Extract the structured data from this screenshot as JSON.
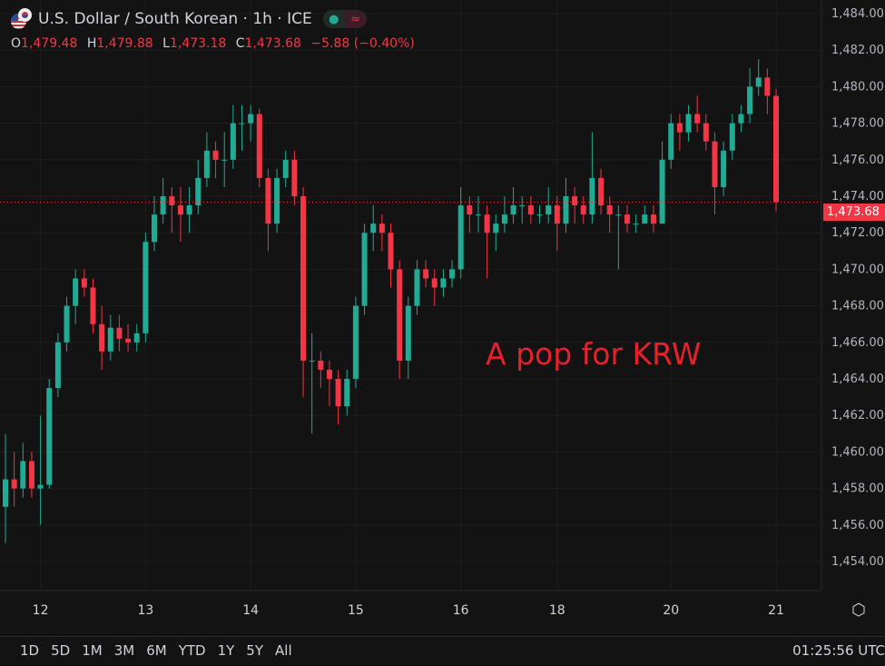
{
  "header": {
    "title": "U.S. Dollar / South Korean · 1h · ICE",
    "status_dot": "●",
    "wave_icon": "≈",
    "ohlc": {
      "o_label": "O",
      "o": "1,479.48",
      "h_label": "H",
      "h": "1,479.88",
      "l_label": "L",
      "l": "1,473.18",
      "c_label": "C",
      "c": "1,473.68",
      "change": "−5.88 (−0.40%)"
    }
  },
  "annotation": "A pop for KRW",
  "current_price_label": "1,473.68",
  "bottom_bar": {
    "ranges": [
      "1D",
      "5D",
      "1M",
      "3M",
      "6M",
      "YTD",
      "1Y",
      "5Y",
      "All"
    ],
    "clock": "01:25:56 UTC"
  },
  "colors": {
    "up": "#22ab94",
    "down": "#f23645",
    "background": "#131313"
  },
  "chart_data": {
    "type": "candlestick",
    "title": "U.S. Dollar / South Korean · 1h · ICE",
    "ylim": [
      1453,
      1485
    ],
    "y_ticks": [
      "1,484.00",
      "1,482.00",
      "1,480.00",
      "1,478.00",
      "1,476.00",
      "1,474.00",
      "1,472.00",
      "1,470.00",
      "1,468.00",
      "1,466.00",
      "1,464.00",
      "1,462.00",
      "1,460.00",
      "1,458.00",
      "1,456.00",
      "1,454.00"
    ],
    "y_tick_values": [
      1484,
      1482,
      1480,
      1478,
      1476,
      1474,
      1472,
      1470,
      1468,
      1466,
      1464,
      1462,
      1460,
      1458,
      1456,
      1454
    ],
    "x_ticks": [
      "12",
      "13",
      "14",
      "15",
      "16",
      "18",
      "20",
      "21"
    ],
    "x_tick_candle_index": [
      4,
      16,
      28,
      40,
      52,
      63,
      76,
      88
    ],
    "current_price": 1473.68,
    "grid": true,
    "candles_ohlc": [
      [
        1457,
        1461,
        1455,
        1458.5
      ],
      [
        1458.5,
        1460,
        1457,
        1458
      ],
      [
        1458,
        1460.5,
        1457.5,
        1459.5
      ],
      [
        1459.5,
        1460,
        1457.5,
        1458
      ],
      [
        1458,
        1462,
        1456,
        1458.2
      ],
      [
        1458.2,
        1464,
        1458,
        1463.5
      ],
      [
        1463.5,
        1466.5,
        1463,
        1466
      ],
      [
        1466,
        1468.5,
        1465.5,
        1468
      ],
      [
        1468,
        1470,
        1467,
        1469.5
      ],
      [
        1469.5,
        1470,
        1468.5,
        1469
      ],
      [
        1469,
        1469.5,
        1466.5,
        1467
      ],
      [
        1467,
        1468,
        1464.5,
        1465.5
      ],
      [
        1465.5,
        1467.5,
        1465,
        1466.8
      ],
      [
        1466.8,
        1467.5,
        1465.5,
        1466.2
      ],
      [
        1466.2,
        1467,
        1465.5,
        1466
      ],
      [
        1466,
        1467,
        1465.5,
        1466.5
      ],
      [
        1466.5,
        1472,
        1466,
        1471.5
      ],
      [
        1471.5,
        1474,
        1471,
        1473
      ],
      [
        1473,
        1475,
        1472.5,
        1474
      ],
      [
        1474,
        1474.5,
        1472,
        1473.5
      ],
      [
        1473.5,
        1474.5,
        1471.5,
        1473
      ],
      [
        1473,
        1474.5,
        1472,
        1473.5
      ],
      [
        1473.5,
        1476,
        1473,
        1475
      ],
      [
        1475,
        1477.5,
        1474.5,
        1476.5
      ],
      [
        1476.5,
        1477,
        1475,
        1476
      ],
      [
        1476,
        1477.5,
        1474.5,
        1476
      ],
      [
        1476,
        1479,
        1475.5,
        1478
      ],
      [
        1478,
        1479,
        1476.5,
        1478
      ],
      [
        1478,
        1479,
        1477,
        1478.5
      ],
      [
        1478.5,
        1478.8,
        1474.5,
        1475
      ],
      [
        1475,
        1475.5,
        1471,
        1472.5
      ],
      [
        1472.5,
        1475.5,
        1472,
        1475
      ],
      [
        1475,
        1476.5,
        1474.5,
        1476
      ],
      [
        1476,
        1476.5,
        1473.5,
        1474
      ],
      [
        1474,
        1474.5,
        1463,
        1465
      ],
      [
        1465,
        1466.5,
        1461,
        1465
      ],
      [
        1465,
        1465.5,
        1463.5,
        1464.5
      ],
      [
        1464.5,
        1465,
        1462.5,
        1464
      ],
      [
        1464,
        1464.5,
        1461.5,
        1462.5
      ],
      [
        1462.5,
        1464.5,
        1462,
        1464
      ],
      [
        1464,
        1468.5,
        1463.5,
        1468
      ],
      [
        1468,
        1472.5,
        1467.5,
        1472
      ],
      [
        1472,
        1473.5,
        1471,
        1472.5
      ],
      [
        1472.5,
        1473,
        1471,
        1472
      ],
      [
        1472,
        1472.5,
        1469,
        1470
      ],
      [
        1470,
        1470.5,
        1464,
        1465
      ],
      [
        1465,
        1468.5,
        1464,
        1468
      ],
      [
        1468,
        1470.5,
        1467.5,
        1470
      ],
      [
        1470,
        1470.5,
        1469,
        1469.5
      ],
      [
        1469.5,
        1470,
        1468,
        1469
      ],
      [
        1469,
        1470,
        1468.5,
        1469.5
      ],
      [
        1469.5,
        1470.5,
        1469,
        1470
      ],
      [
        1470,
        1474.5,
        1469.5,
        1473.5
      ],
      [
        1473.5,
        1474,
        1472,
        1473
      ],
      [
        1473,
        1474,
        1472,
        1473
      ],
      [
        1473,
        1473.5,
        1469.5,
        1472
      ],
      [
        1472,
        1473,
        1471,
        1472.5
      ],
      [
        1472.5,
        1474,
        1472,
        1473
      ],
      [
        1473,
        1474.5,
        1472.5,
        1473.5
      ],
      [
        1473.5,
        1474,
        1472.5,
        1473.5
      ],
      [
        1473.5,
        1474,
        1472.5,
        1473
      ],
      [
        1473,
        1473.5,
        1472.5,
        1473
      ],
      [
        1473,
        1474.5,
        1472.5,
        1473.5
      ],
      [
        1473.5,
        1474,
        1471,
        1472.5
      ],
      [
        1472.5,
        1475,
        1472,
        1474
      ],
      [
        1474,
        1474.5,
        1472.5,
        1473.5
      ],
      [
        1473.5,
        1474,
        1472.5,
        1473
      ],
      [
        1473,
        1477.5,
        1472.5,
        1475
      ],
      [
        1475,
        1475.5,
        1473,
        1473.5
      ],
      [
        1473.5,
        1474,
        1472,
        1473
      ],
      [
        1473,
        1473.5,
        1470,
        1473
      ],
      [
        1473,
        1473.5,
        1472,
        1472.5
      ],
      [
        1472.5,
        1473,
        1472,
        1472.5
      ],
      [
        1472.5,
        1473.5,
        1472.5,
        1473
      ],
      [
        1473,
        1473.5,
        1472,
        1472.5
      ],
      [
        1472.5,
        1477,
        1472.5,
        1476
      ],
      [
        1476,
        1478.5,
        1475.5,
        1478
      ],
      [
        1478,
        1478.5,
        1476.5,
        1477.5
      ],
      [
        1477.5,
        1479,
        1477,
        1478.5
      ],
      [
        1478.5,
        1479.5,
        1477.5,
        1478
      ],
      [
        1478,
        1478.5,
        1476.5,
        1477
      ],
      [
        1477,
        1477.5,
        1473,
        1474.5
      ],
      [
        1474.5,
        1477,
        1474,
        1476.5
      ],
      [
        1476.5,
        1478.5,
        1476,
        1478
      ],
      [
        1478,
        1479,
        1477.5,
        1478.5
      ],
      [
        1478.5,
        1481,
        1478,
        1480
      ],
      [
        1480,
        1481.5,
        1479.5,
        1480.5
      ],
      [
        1480.5,
        1481,
        1478.5,
        1479.5
      ],
      [
        1479.5,
        1479.88,
        1473.18,
        1473.68
      ]
    ]
  }
}
